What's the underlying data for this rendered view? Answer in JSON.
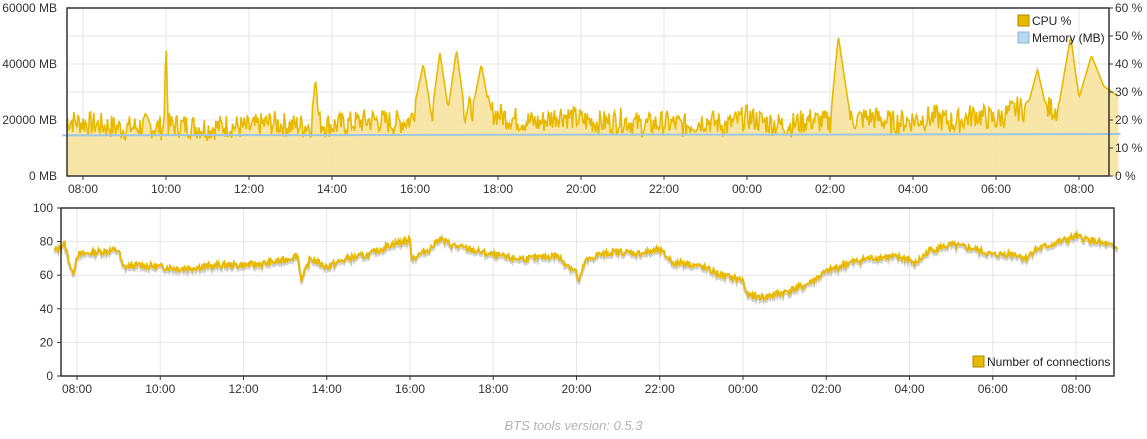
{
  "footer": {
    "version_text": "BTS tools version: 0.5.3"
  },
  "colors": {
    "cpu": "#e8b900",
    "cpu_fill": "#f7e3a0",
    "memory": "#9cc6e4",
    "connections": "#e8b900",
    "grid": "#e5e5e5",
    "frame": "#333333"
  },
  "chart_data": [
    {
      "type": "area",
      "x_ticks": [
        "08:00",
        "10:00",
        "12:00",
        "14:00",
        "16:00",
        "18:00",
        "20:00",
        "22:00",
        "00:00",
        "02:00",
        "04:00",
        "06:00",
        "08:00"
      ],
      "y_left_ticks": [
        "0 MB",
        "20000 MB",
        "40000 MB",
        "60000 MB"
      ],
      "y_left_lim": [
        0,
        60000
      ],
      "y_right_ticks": [
        "0 %",
        "10 %",
        "20 %",
        "30 %",
        "40 %",
        "50 %",
        "60 %"
      ],
      "y_right_lim": [
        0,
        60
      ],
      "grid": true,
      "legend_position": "top-right",
      "series": [
        {
          "name": "CPU %",
          "axis": "right",
          "x_hours": [
            7.5,
            8.0,
            8.5,
            9.0,
            9.5,
            9.95,
            10.0,
            10.05,
            10.5,
            11.0,
            11.5,
            12.0,
            12.5,
            13.0,
            13.5,
            13.6,
            13.7,
            14.0,
            14.5,
            15.0,
            15.5,
            15.9,
            16.0,
            16.2,
            16.4,
            16.6,
            16.8,
            17.0,
            17.2,
            17.4,
            17.6,
            17.8,
            18.0,
            18.2,
            18.5,
            19.0,
            19.5,
            20.0,
            20.5,
            21.0,
            21.5,
            22.0,
            22.5,
            23.0,
            23.5,
            24.0,
            24.5,
            25.0,
            25.5,
            26.0,
            26.2,
            26.5,
            27.0,
            27.5,
            28.0,
            28.5,
            29.0,
            29.5,
            30.0,
            30.5,
            30.8,
            31.0,
            31.2,
            31.5,
            31.8,
            32.0,
            32.3,
            32.6,
            33.0
          ],
          "values": [
            20,
            19,
            18,
            17,
            18,
            17,
            50,
            18,
            18,
            17,
            18,
            17,
            19,
            18,
            18,
            35,
            19,
            18,
            19,
            20,
            19,
            20,
            26,
            40,
            22,
            44,
            24,
            45,
            23,
            25,
            40,
            23,
            22,
            21,
            20,
            19,
            22,
            20,
            19,
            20,
            18,
            19,
            18,
            20,
            18,
            21,
            19,
            18,
            20,
            19,
            50,
            20,
            21,
            19,
            20,
            21,
            19,
            22,
            20,
            24,
            27,
            38,
            25,
            24,
            50,
            28,
            43,
            32,
            28
          ]
        },
        {
          "name": "Memory (MB)",
          "axis": "left",
          "x_hours": [
            7.5,
            10.0,
            14.0,
            18.0,
            22.0,
            26.0,
            30.0,
            33.0
          ],
          "values": [
            14500,
            14600,
            14600,
            14700,
            14800,
            14800,
            14900,
            15000
          ]
        }
      ]
    },
    {
      "type": "line",
      "x_ticks": [
        "08:00",
        "10:00",
        "12:00",
        "14:00",
        "16:00",
        "18:00",
        "20:00",
        "22:00",
        "00:00",
        "02:00",
        "04:00",
        "06:00",
        "08:00"
      ],
      "y_ticks": [
        "0",
        "20",
        "40",
        "60",
        "80",
        "100"
      ],
      "ylim": [
        0,
        100
      ],
      "grid": true,
      "legend_position": "bottom-right",
      "series": [
        {
          "name": "Number of connections",
          "x_hours": [
            7.5,
            7.7,
            7.9,
            8.0,
            8.5,
            9.0,
            9.1,
            9.5,
            10.0,
            10.5,
            11.0,
            11.5,
            12.0,
            12.5,
            13.0,
            13.3,
            13.4,
            13.6,
            14.0,
            14.5,
            15.0,
            15.5,
            16.0,
            16.05,
            16.5,
            16.7,
            17.0,
            17.5,
            18.0,
            18.5,
            19.0,
            19.5,
            20.0,
            20.05,
            20.2,
            20.5,
            21.0,
            21.5,
            22.0,
            22.4,
            22.5,
            23.0,
            23.5,
            24.0,
            24.1,
            24.5,
            25.0,
            25.5,
            26.0,
            26.5,
            27.0,
            27.5,
            28.0,
            28.1,
            28.5,
            29.0,
            29.5,
            30.0,
            30.5,
            30.8,
            31.0,
            31.5,
            32.0,
            32.5,
            33.0
          ],
          "values": [
            75,
            79,
            60,
            72,
            74,
            75,
            65,
            66,
            65,
            64,
            65,
            66,
            66,
            67,
            69,
            72,
            57,
            70,
            65,
            70,
            72,
            78,
            81,
            70,
            76,
            82,
            78,
            75,
            72,
            70,
            70,
            72,
            62,
            55,
            68,
            72,
            74,
            73,
            75,
            66,
            68,
            65,
            60,
            57,
            48,
            47,
            50,
            54,
            62,
            67,
            70,
            71,
            70,
            66,
            75,
            78,
            76,
            72,
            73,
            70,
            75,
            79,
            83,
            80,
            76
          ]
        }
      ]
    }
  ]
}
